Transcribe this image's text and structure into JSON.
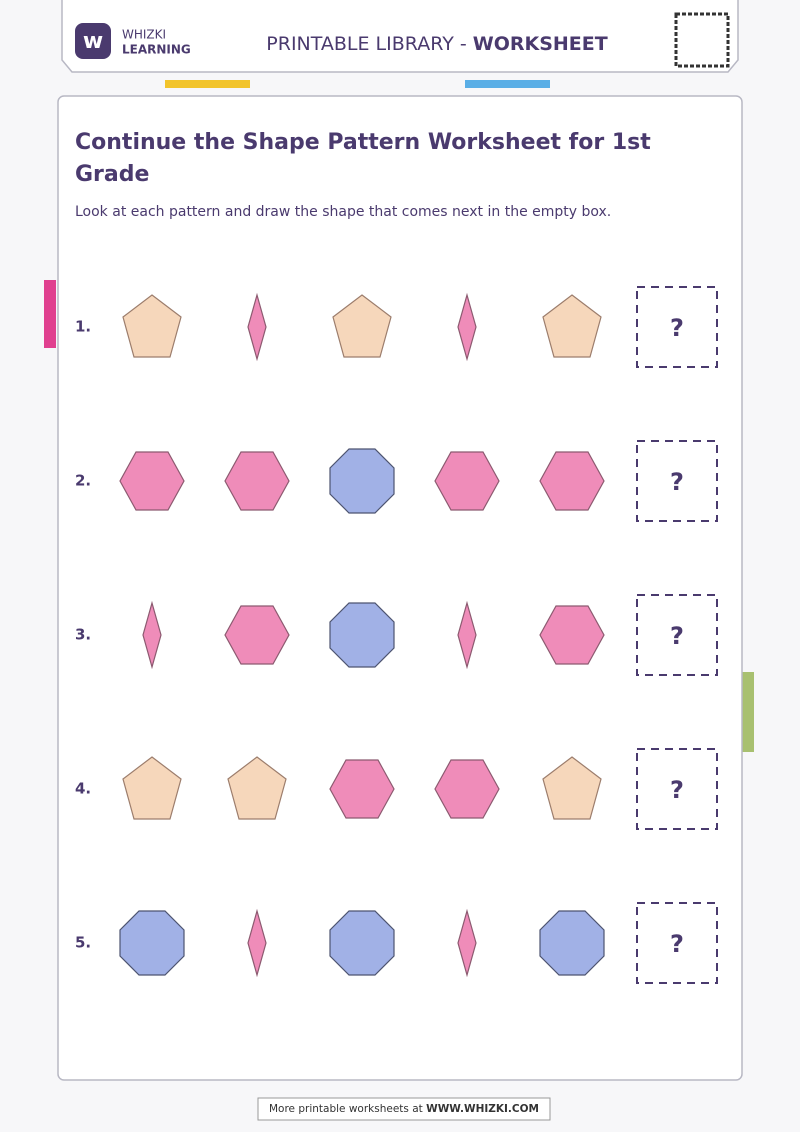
{
  "header": {
    "brand_top": "WHIZKI",
    "brand_bottom": "LEARNING",
    "library": "PRINTABLE LIBRARY -",
    "kind": "WORKSHEET"
  },
  "title_line1": "Continue the Shape Pattern Worksheet for 1st",
  "title_line2": "Grade",
  "instructions": "Look at each pattern and draw the shape that comes next in the empty box.",
  "rows": [
    {
      "number": "1.",
      "answer": "?"
    },
    {
      "number": "2.",
      "answer": "?"
    },
    {
      "number": "3.",
      "answer": "?"
    },
    {
      "number": "4.",
      "answer": "?"
    },
    {
      "number": "5.",
      "answer": "?"
    }
  ],
  "footer": {
    "text": "More printable worksheets at",
    "site": "WWW.WHIZKI.COM"
  }
}
